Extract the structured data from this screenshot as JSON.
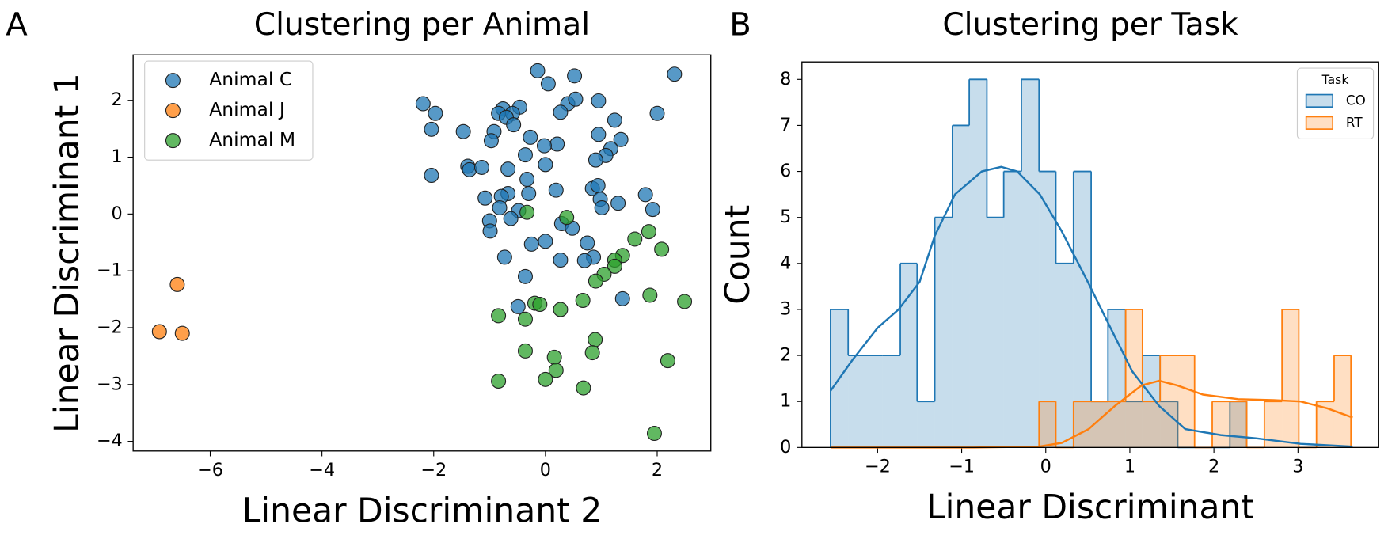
{
  "chart_data": [
    {
      "type": "scatter",
      "panel_label": "A",
      "title": "Clustering per Animal",
      "xlabel": "Linear Discriminant 2",
      "ylabel": "Linear Discriminant 1",
      "xlim": [
        -7.38,
        2.96
      ],
      "ylim": [
        -4.17,
        2.8
      ],
      "xticks": [
        {
          "value": -6,
          "label": "−6"
        },
        {
          "value": -4,
          "label": "−4"
        },
        {
          "value": -2,
          "label": "−2"
        },
        0,
        2
      ],
      "yticks": [
        {
          "value": -4,
          "label": "−4"
        },
        {
          "value": -3,
          "label": "−3"
        },
        {
          "value": -2,
          "label": "−2"
        },
        {
          "value": -1,
          "label": "−1"
        },
        0,
        1,
        2
      ],
      "legend": "upper left",
      "series": [
        {
          "name": "Animal C",
          "color": "#1f77b4",
          "x": [
            -0.14,
            0.52,
            2.31,
            0.05,
            -2.19,
            -1.97,
            0.4,
            0.95,
            0.54,
            2.0,
            -0.76,
            -0.84,
            -0.46,
            -0.59,
            -0.7,
            0.27,
            1.24,
            -0.57,
            -2.04,
            -1.47,
            -0.92,
            -0.97,
            -0.27,
            0.21,
            -0.02,
            0.95,
            1.35,
            1.17,
            1.08,
            -0.36,
            0.9,
            0.0,
            -1.39,
            -1.36,
            -1.14,
            -0.67,
            -2.04,
            -0.33,
            0.84,
            0.19,
            0.94,
            -1.08,
            -0.67,
            -0.3,
            -0.79,
            0.98,
            1.79,
            1.3,
            -0.82,
            -0.48,
            1.01,
            1.92,
            -1.0,
            -0.62,
            0.29,
            0.48,
            -0.99,
            -0.25,
            0.0,
            0.75,
            -0.73,
            0.86,
            0.7,
            0.27,
            -0.36,
            1.38,
            -0.49
          ],
          "values": [
            2.52,
            2.43,
            2.46,
            2.29,
            1.94,
            1.77,
            1.94,
            1.99,
            2.02,
            1.77,
            1.85,
            1.77,
            1.88,
            1.77,
            1.7,
            1.79,
            1.65,
            1.57,
            1.49,
            1.45,
            1.45,
            1.29,
            1.35,
            1.23,
            1.2,
            1.4,
            1.31,
            1.15,
            1.03,
            1.04,
            0.95,
            0.87,
            0.84,
            0.78,
            0.82,
            0.79,
            0.68,
            0.61,
            0.45,
            0.42,
            0.5,
            0.28,
            0.36,
            0.36,
            0.31,
            0.26,
            0.34,
            0.19,
            0.11,
            0.06,
            0.11,
            0.08,
            -0.12,
            -0.08,
            -0.17,
            -0.25,
            -0.3,
            -0.53,
            -0.48,
            -0.51,
            -0.76,
            -0.76,
            -0.82,
            -0.81,
            -1.1,
            -1.49,
            -1.63
          ]
        },
        {
          "name": "Animal J",
          "color": "#ff7f0e",
          "x": [
            -6.59,
            -6.91,
            -6.5
          ],
          "values": [
            -1.24,
            -2.07,
            -2.1
          ]
        },
        {
          "name": "Animal M",
          "color": "#2ca02c",
          "x": [
            -0.33,
            0.38,
            1.6,
            1.85,
            2.08,
            1.38,
            1.24,
            1.24,
            1.05,
            0.9,
            -0.19,
            -0.1,
            0.67,
            0.27,
            1.87,
            2.49,
            -0.84,
            -0.36,
            0.89,
            -0.36,
            0.84,
            0.16,
            2.19,
            0.19,
            -0.84,
            0.0,
            0.68,
            1.95
          ],
          "values": [
            0.03,
            -0.06,
            -0.44,
            -0.31,
            -0.62,
            -0.73,
            -0.81,
            -0.92,
            -1.06,
            -1.18,
            -1.57,
            -1.59,
            -1.52,
            -1.68,
            -1.43,
            -1.54,
            -1.79,
            -1.85,
            -2.21,
            -2.41,
            -2.44,
            -2.52,
            -2.58,
            -2.75,
            -2.94,
            -2.91,
            -3.06,
            -3.86
          ]
        }
      ]
    },
    {
      "type": "histogram",
      "panel_label": "B",
      "title": "Clustering per Task",
      "xlabel": "Linear Discriminant",
      "ylabel": "Count",
      "xlim": [
        -2.9,
        3.96
      ],
      "ylim": [
        0,
        8.38
      ],
      "xticks": [
        {
          "value": -2,
          "label": "−2"
        },
        {
          "value": -1,
          "label": "−1"
        },
        0,
        1,
        2,
        3
      ],
      "yticks": [
        0,
        1,
        2,
        3,
        4,
        5,
        6,
        7,
        8
      ],
      "legend": "upper right",
      "legend_title": "Task",
      "series": [
        {
          "name": "CO",
          "color": "#1f77b4",
          "bins": [
            -2.56,
            -2.35,
            -2.15,
            -1.94,
            -1.73,
            -1.53,
            -1.32,
            -1.11,
            -0.91,
            -0.7,
            -0.5,
            -0.29,
            -0.08,
            0.12,
            0.33,
            0.54,
            0.74,
            0.95,
            1.15,
            1.36,
            1.57,
            1.77,
            1.98,
            2.19,
            2.39
          ],
          "values": [
            3,
            2,
            2,
            2,
            4,
            1,
            5,
            7,
            8,
            5,
            6,
            8,
            6,
            4,
            6,
            1,
            3,
            1,
            2,
            1,
            0,
            0,
            0,
            1
          ],
          "kde": {
            "x": [
              -2.56,
              -2.3,
              -2.0,
              -1.75,
              -1.5,
              -1.32,
              -1.08,
              -0.76,
              -0.53,
              -0.34,
              -0.07,
              0.19,
              0.5,
              0.77,
              1.03,
              1.35,
              1.66,
              2.08,
              2.5,
              3.03,
              3.65
            ],
            "values": [
              1.23,
              1.9,
              2.6,
              3.0,
              3.6,
              4.6,
              5.5,
              6.0,
              6.1,
              6.0,
              5.5,
              4.7,
              3.6,
              2.6,
              1.65,
              0.9,
              0.4,
              0.27,
              0.2,
              0.08,
              0.02
            ]
          }
        },
        {
          "name": "RT",
          "color": "#ff7f0e",
          "bins": [
            -0.08,
            0.12,
            0.33,
            0.54,
            0.74,
            0.95,
            1.15,
            1.36,
            1.57,
            1.77,
            1.98,
            2.19,
            2.39,
            2.6,
            2.81,
            3.01,
            3.22,
            3.43,
            3.63
          ],
          "values": [
            1,
            0,
            1,
            1,
            1,
            3,
            1,
            2,
            2,
            0,
            1,
            1,
            0,
            1,
            3,
            0,
            1,
            2
          ],
          "kde": {
            "x": [
              -2.56,
              -0.86,
              -0.08,
              0.19,
              0.51,
              0.82,
              1.14,
              1.35,
              1.56,
              1.87,
              2.29,
              2.71,
              3.03,
              3.35,
              3.65
            ],
            "values": [
              0,
              0,
              0.02,
              0.1,
              0.4,
              0.9,
              1.35,
              1.45,
              1.35,
              1.15,
              1.05,
              1.03,
              1.0,
              0.85,
              0.65
            ]
          }
        }
      ]
    }
  ]
}
